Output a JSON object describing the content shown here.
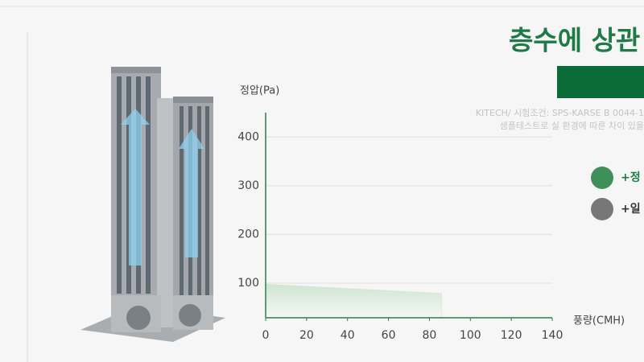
{
  "chart_data": {
    "type": "area",
    "title": "층수에 상관",
    "subtitle_lines": [
      "KITECH/ 시험조건: SPS-KARSE B 0044-1",
      "샘플테스트로 실 환경에 따른 차이 있을"
    ],
    "y_label": "정압(Pa)",
    "x_label": "풍량(CMH)",
    "x": [
      0,
      86
    ],
    "series": [
      {
        "values": [
          98,
          79
        ],
        "color": "#cfe5d2"
      }
    ],
    "xlim": [
      0,
      140
    ],
    "xticks": [
      0,
      20,
      40,
      60,
      80,
      100,
      120,
      140
    ],
    "ylim": [
      29,
      450
    ],
    "yticks": [
      100,
      200,
      300,
      400
    ],
    "grid": true,
    "legend": [
      "+정",
      "+일"
    ],
    "axis_color": "#2e7d4f"
  }
}
